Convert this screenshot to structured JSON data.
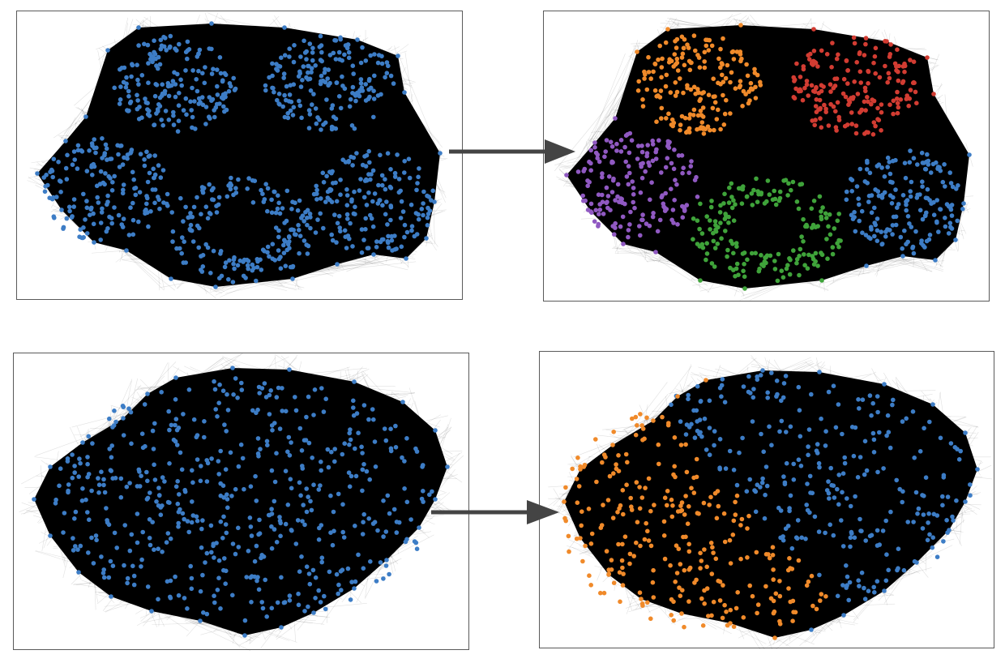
{
  "figure": {
    "transitions": [
      {
        "before": {
          "node_color_names": [
            "blue"
          ],
          "node_count": 1000
        },
        "after": {
          "community_count": 5,
          "community_colors": [
            "orange",
            "red",
            "purple",
            "green",
            "blue"
          ],
          "node_count": 1000
        }
      },
      {
        "before": {
          "node_color_names": [
            "blue"
          ],
          "node_count": 700
        },
        "after": {
          "community_count": 2,
          "community_colors": [
            "blue",
            "orange"
          ],
          "node_count": 700
        }
      }
    ]
  },
  "colors": {
    "blue": "#3d7dc6",
    "orange": "#f08a2a",
    "red": "#d23c32",
    "purple": "#9059c2",
    "green": "#3fa33a",
    "edge": "#000000",
    "frame": "#5a5a5a",
    "arrow": "#444444"
  }
}
